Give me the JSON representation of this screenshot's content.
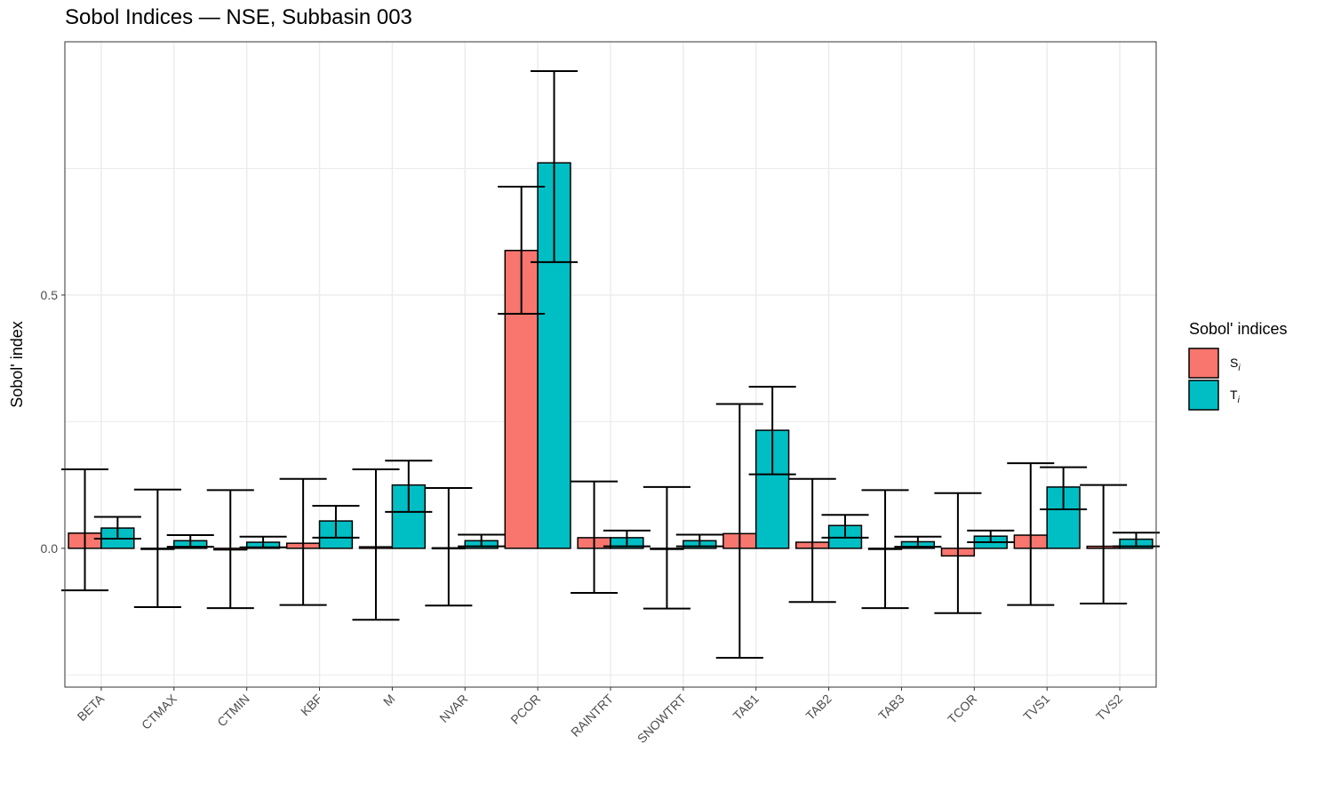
{
  "chart_data": {
    "type": "bar",
    "title": "Sobol Indices — NSE, Subbasin 003",
    "xlabel": "",
    "ylabel": "Sobol' index",
    "ylim": [
      -0.274,
      1.0
    ],
    "yticks": [
      0.0,
      0.5
    ],
    "ytick_labels": [
      "0.0",
      "0.5"
    ],
    "y_gridlines": [
      -0.25,
      0.0,
      0.25,
      0.5,
      0.75
    ],
    "grid": true,
    "categories": [
      "BETA",
      "CTMAX",
      "CTMIN",
      "KBF",
      "M",
      "NVAR",
      "PCOR",
      "RAINTRT",
      "SNOWTRT",
      "TAB1",
      "TAB2",
      "TAB3",
      "TCOR",
      "TVS1",
      "TVS2"
    ],
    "legend": {
      "title": "Sobol' indices",
      "position": "right"
    },
    "series": [
      {
        "name": "S",
        "subscript": "i",
        "color": "#F8766D",
        "values": [
          0.03,
          -0.002,
          -0.003,
          0.01,
          0.003,
          0.001,
          0.588,
          0.021,
          -0.002,
          0.029,
          0.012,
          -0.002,
          -0.015,
          0.026,
          0.004
        ],
        "ci_low": [
          -0.083,
          -0.116,
          -0.118,
          -0.112,
          -0.141,
          -0.113,
          0.463,
          -0.088,
          -0.119,
          -0.216,
          -0.106,
          -0.118,
          -0.128,
          -0.112,
          -0.109
        ],
        "ci_high": [
          0.156,
          0.116,
          0.115,
          0.137,
          0.156,
          0.119,
          0.714,
          0.132,
          0.121,
          0.285,
          0.137,
          0.115,
          0.109,
          0.168,
          0.125
        ]
      },
      {
        "name": "T",
        "subscript": "i",
        "color": "#00BFC4",
        "values": [
          0.04,
          0.015,
          0.012,
          0.054,
          0.125,
          0.015,
          0.761,
          0.021,
          0.015,
          0.233,
          0.045,
          0.013,
          0.024,
          0.121,
          0.018
        ],
        "ci_low": [
          0.019,
          0.003,
          0.002,
          0.021,
          0.072,
          0.004,
          0.565,
          0.004,
          0.004,
          0.146,
          0.021,
          0.003,
          0.012,
          0.077,
          0.004
        ],
        "ci_high": [
          0.062,
          0.026,
          0.023,
          0.084,
          0.173,
          0.027,
          0.942,
          0.035,
          0.027,
          0.319,
          0.066,
          0.023,
          0.035,
          0.16,
          0.031
        ]
      }
    ]
  }
}
